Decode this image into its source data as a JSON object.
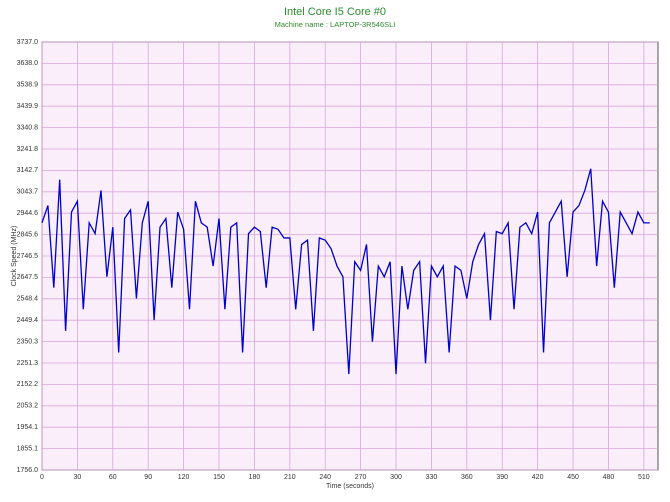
{
  "chart_data": {
    "type": "line",
    "title": "Intel Core I5 Core #0",
    "subtitle": "Machine name : LAPTOP-3R546SLI",
    "y_label": "Clock Speed (MHz)",
    "x_label": "Time (seconds)",
    "color": "#0000cc",
    "grid": true,
    "x": [
      0,
      5,
      10,
      15,
      20,
      25,
      30,
      35,
      40,
      45,
      50,
      55,
      60,
      65,
      70,
      75,
      80,
      85,
      90,
      95,
      100,
      105,
      110,
      115,
      120,
      125,
      130,
      135,
      140,
      145,
      150,
      155,
      160,
      165,
      170,
      175,
      180,
      185,
      190,
      195,
      200,
      205,
      210,
      215,
      220,
      225,
      230,
      235,
      240,
      245,
      250,
      255,
      260,
      265,
      270,
      275,
      280,
      285,
      290,
      295,
      300,
      305,
      310,
      315,
      320,
      325,
      330,
      335,
      340,
      345,
      350,
      355,
      360,
      365,
      370,
      375,
      380,
      385,
      390,
      395,
      400,
      405,
      410,
      415,
      420,
      425,
      430,
      435,
      440,
      445,
      450,
      455,
      460,
      465,
      470,
      475,
      480,
      485,
      490,
      495,
      500,
      505,
      510,
      515
    ],
    "values": [
      2900,
      2980,
      2600,
      3100,
      2400,
      2950,
      3000,
      2500,
      2900,
      2850,
      3050,
      2650,
      2880,
      2300,
      2920,
      2960,
      2550,
      2900,
      3000,
      2450,
      2880,
      2920,
      2600,
      2950,
      2870,
      2500,
      3000,
      2900,
      2880,
      2700,
      2920,
      2500,
      2880,
      2900,
      2300,
      2850,
      2880,
      2860,
      2600,
      2880,
      2870,
      2830,
      2830,
      2500,
      2800,
      2820,
      2400,
      2830,
      2820,
      2780,
      2700,
      2650,
      2200,
      2720,
      2680,
      2800,
      2350,
      2700,
      2650,
      2720,
      2200,
      2700,
      2500,
      2680,
      2720,
      2250,
      2700,
      2650,
      2700,
      2300,
      2700,
      2680,
      2550,
      2720,
      2800,
      2850,
      2450,
      2860,
      2850,
      2900,
      2500,
      2880,
      2900,
      2850,
      2950,
      2300,
      2900,
      2950,
      3000,
      2650,
      2950,
      2980,
      3050,
      3150,
      2700,
      3000,
      2950,
      2600,
      2950,
      2900,
      2850,
      2950,
      2900,
      2900
    ],
    "xlim": [
      0,
      522
    ],
    "xticks": [
      0,
      30,
      60,
      90,
      120,
      150,
      180,
      210,
      240,
      270,
      300,
      330,
      360,
      390,
      420,
      450,
      480,
      510
    ],
    "ylim": [
      1756,
      3737
    ],
    "yticks": [
      {
        "value": 1756,
        "label": "1756.0"
      },
      1855.1,
      2053.2,
      2152.2,
      2251.3,
      2350.3,
      2449.4,
      2548.4,
      2647.5,
      2746.5,
      2845.6,
      2944.6,
      3043.7,
      3142.7,
      3241.8,
      3340.8,
      3439.9,
      3538.9,
      {
        "value": 3638,
        "label": "3638.0"
      },
      {
        "value": 3737,
        "label": "3737.0"
      },
      {
        "value": 1954.1,
        "label": "1954.1"
      }
    ]
  }
}
